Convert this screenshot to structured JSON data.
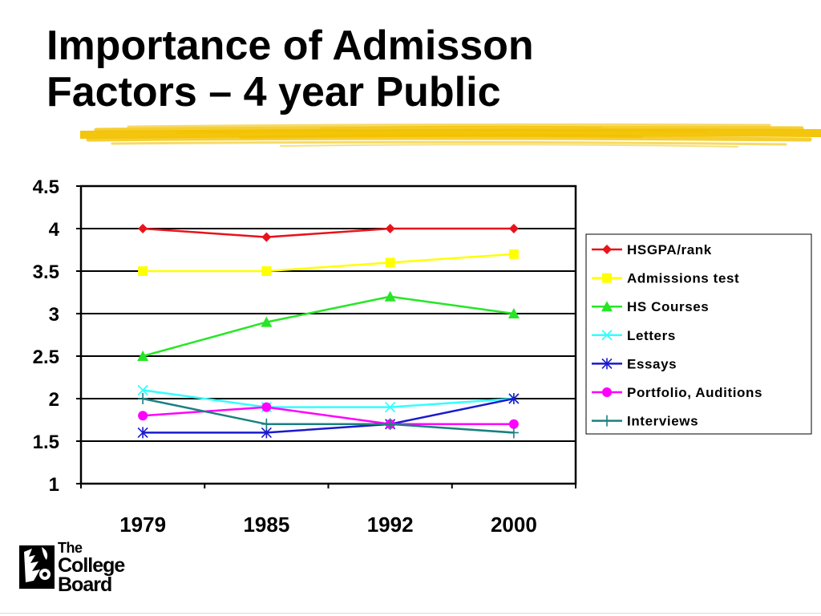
{
  "slide": {
    "title_line1": "Importance of Admisson",
    "title_line2": "Factors – 4 year Public",
    "logo_text": [
      "The",
      "College",
      "Board"
    ]
  },
  "colors": {
    "brush": "#f2c200",
    "plot_border": "#000000",
    "gridline": "#000000"
  },
  "chart_data": {
    "type": "line",
    "title": "",
    "xlabel": "",
    "ylabel": "",
    "categories": [
      "1979",
      "1985",
      "1992",
      "2000"
    ],
    "ylim": [
      1,
      4.5
    ],
    "yticks": [
      "1",
      "1.5",
      "2",
      "2.5",
      "3",
      "3.5",
      "4",
      "4.5"
    ],
    "grid": "horizontal",
    "legend_position": "right",
    "series": [
      {
        "name": "HSGPA/rank",
        "color": "#e8131b",
        "marker": "diamond",
        "values": [
          4.0,
          3.9,
          4.0,
          4.0
        ]
      },
      {
        "name": "Admissions test",
        "color": "#ffff00",
        "marker": "square",
        "values": [
          3.5,
          3.5,
          3.6,
          3.7
        ]
      },
      {
        "name": "HS Courses",
        "color": "#26e626",
        "marker": "triangle",
        "values": [
          2.5,
          2.9,
          3.2,
          3.0
        ]
      },
      {
        "name": "Letters",
        "color": "#33ffff",
        "marker": "x",
        "values": [
          2.1,
          1.9,
          1.9,
          2.0
        ]
      },
      {
        "name": "Essays",
        "color": "#1a1acc",
        "marker": "star",
        "values": [
          1.6,
          1.6,
          1.7,
          2.0
        ]
      },
      {
        "name": "Portfolio, Auditions",
        "color": "#ff00ff",
        "marker": "circle",
        "values": [
          1.8,
          1.9,
          1.7,
          1.7
        ]
      },
      {
        "name": "Interviews",
        "color": "#1a8080",
        "marker": "plus",
        "values": [
          2.0,
          1.7,
          1.7,
          1.6
        ]
      }
    ]
  }
}
